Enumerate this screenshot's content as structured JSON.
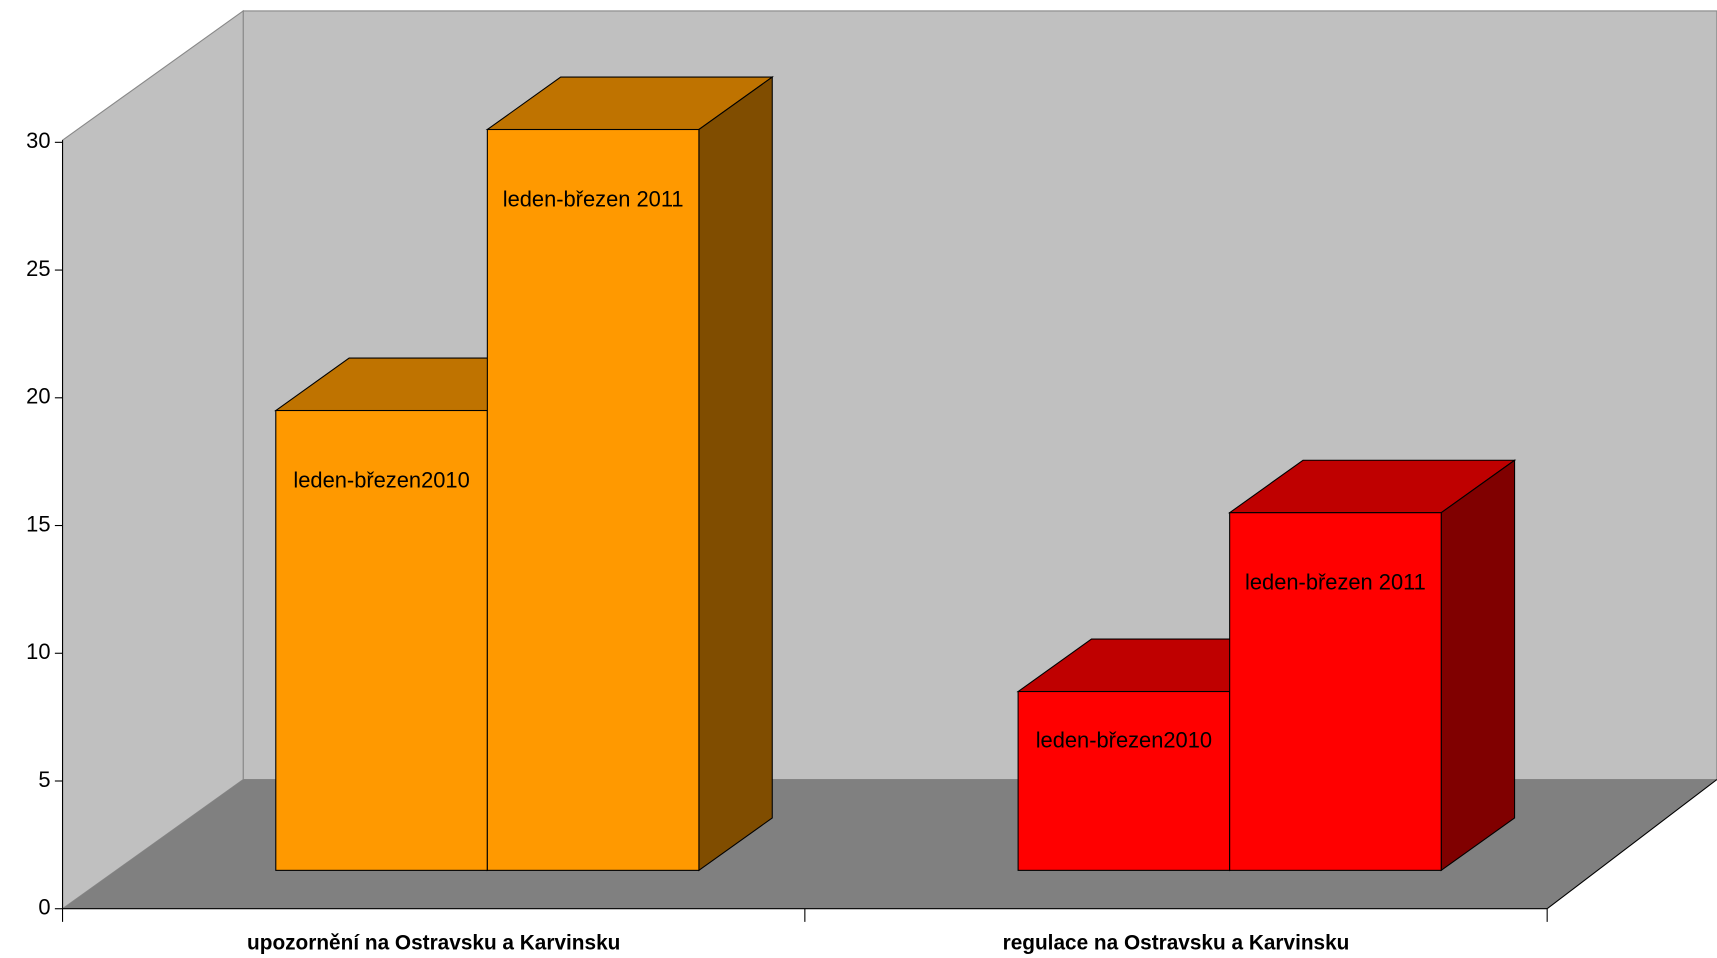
{
  "chart_data": {
    "type": "bar3d",
    "categories": [
      "upozornění na Ostravsku a Karvinsku",
      "regulace na Ostravsku a Karvinsku"
    ],
    "category_colors": [
      "#ff9900",
      "#ff0000"
    ],
    "series": [
      {
        "name": "leden-březen2010",
        "values": [
          18,
          7
        ]
      },
      {
        "name": "leden-březen 2011",
        "values": [
          29,
          14
        ]
      }
    ],
    "ylim": [
      0,
      30
    ],
    "yticks": [
      0,
      5,
      10,
      15,
      20,
      25,
      30
    ]
  }
}
